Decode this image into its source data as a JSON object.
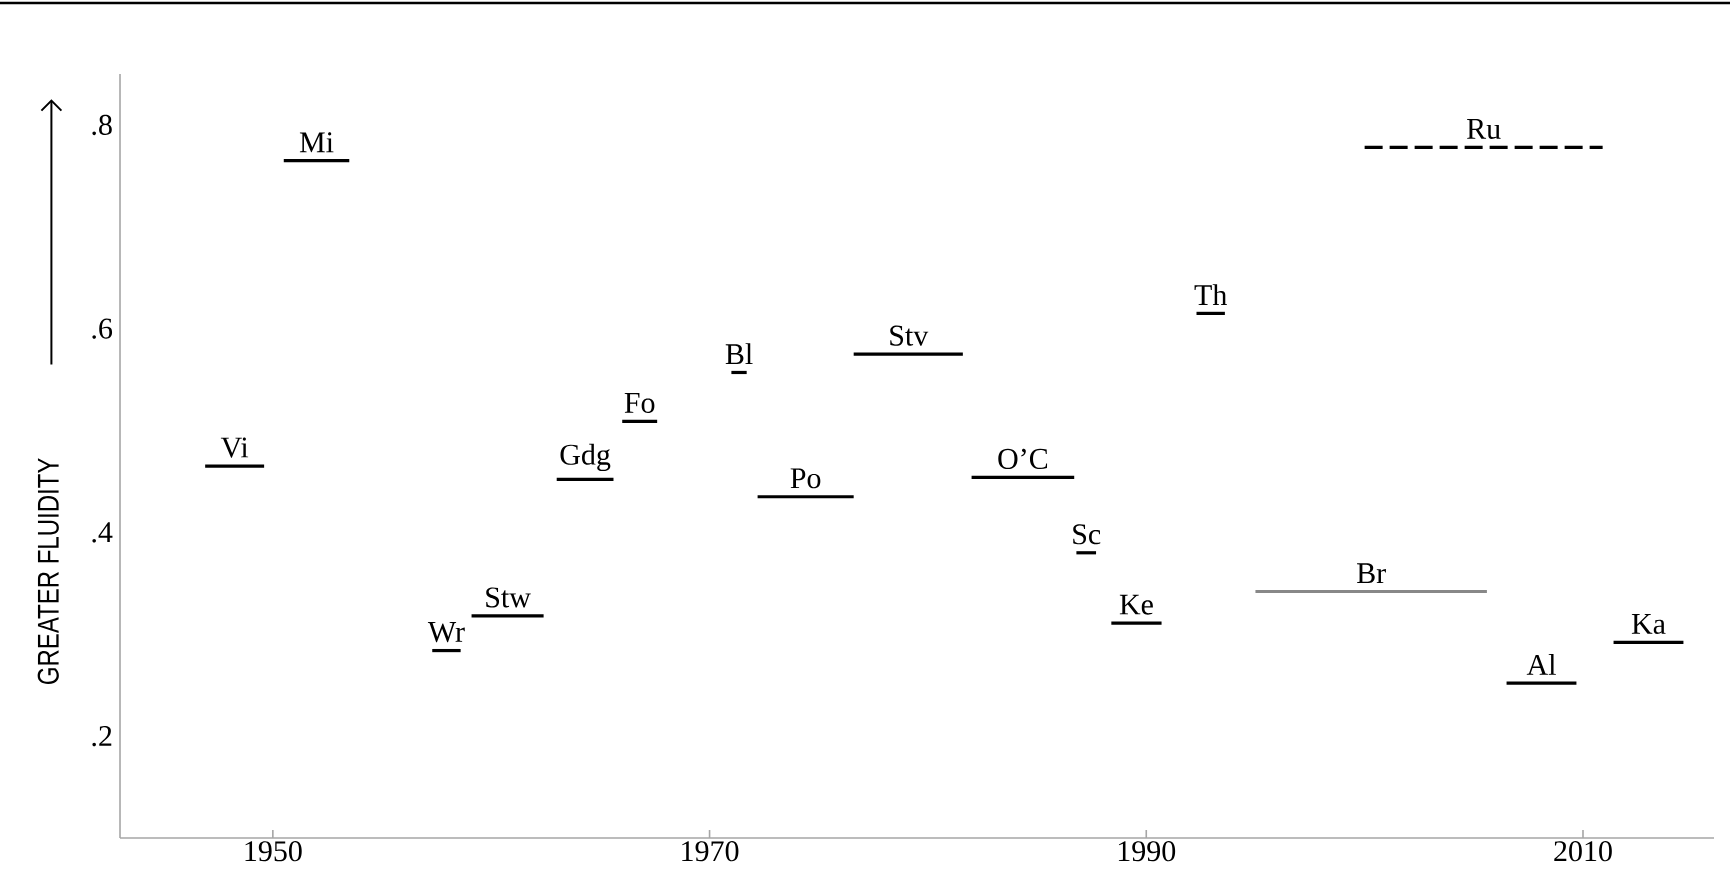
{
  "chart_data": {
    "type": "line",
    "ylabel": "GREATER FLUIDITY",
    "xlim": [
      1943,
      2016
    ],
    "ylim": [
      0.1,
      0.85
    ],
    "xticks": [
      1950,
      1970,
      1990,
      2010
    ],
    "yticks": [
      {
        "value": 0.2,
        "label": ".2"
      },
      {
        "value": 0.4,
        "label": ".4"
      },
      {
        "value": 0.6,
        "label": ".6"
      },
      {
        "value": 0.8,
        "label": ".8"
      }
    ],
    "line_style": "solid",
    "series": [
      {
        "name": "Vi",
        "color": "#000000",
        "x": [
          1946.9,
          1949.6
        ],
        "values": [
          0.465,
          0.465
        ]
      },
      {
        "name": "Mi",
        "color": "#000000",
        "x": [
          1950.5,
          1953.5
        ],
        "values": [
          0.765,
          0.765
        ]
      },
      {
        "name": "Wr",
        "color": "#000000",
        "x": [
          1957.3,
          1958.6
        ],
        "values": [
          0.284,
          0.284
        ]
      },
      {
        "name": "Stw",
        "color": "#000000",
        "x": [
          1959.1,
          1962.4
        ],
        "values": [
          0.318,
          0.318
        ]
      },
      {
        "name": "Gdg",
        "color": "#000000",
        "x": [
          1963.0,
          1965.6
        ],
        "values": [
          0.452,
          0.452
        ]
      },
      {
        "name": "Fo",
        "color": "#000000",
        "x": [
          1966.0,
          1967.6
        ],
        "values": [
          0.509,
          0.509
        ]
      },
      {
        "name": "Bl",
        "color": "#000000",
        "x": [
          1971.0,
          1971.7
        ],
        "values": [
          0.557,
          0.557
        ]
      },
      {
        "name": "Po",
        "color": "#000000",
        "x": [
          1972.2,
          1976.6
        ],
        "values": [
          0.435,
          0.435
        ]
      },
      {
        "name": "Stv",
        "color": "#000000",
        "x": [
          1976.6,
          1981.6
        ],
        "values": [
          0.575,
          0.575
        ]
      },
      {
        "name": "O’C",
        "color": "#000000",
        "x": [
          1982.0,
          1986.7
        ],
        "values": [
          0.454,
          0.454
        ]
      },
      {
        "name": "Sc",
        "color": "#000000",
        "x": [
          1986.8,
          1987.7
        ],
        "values": [
          0.38,
          0.38
        ]
      },
      {
        "name": "Ke",
        "color": "#000000",
        "x": [
          1988.4,
          1990.7
        ],
        "values": [
          0.311,
          0.311
        ]
      },
      {
        "name": "Th",
        "color": "#000000",
        "x": [
          1992.3,
          1993.6
        ],
        "values": [
          0.615,
          0.615
        ]
      },
      {
        "name": "Br",
        "color": "#888888",
        "x": [
          1995.0,
          2005.6
        ],
        "values": [
          0.342,
          0.342
        ]
      },
      {
        "name": "Ru",
        "color": "#000000",
        "x": [
          2000.0,
          2010.9
        ],
        "values": [
          0.778,
          0.778
        ],
        "line_style": "dashed"
      },
      {
        "name": "Al",
        "color": "#000000",
        "x": [
          2006.5,
          2009.7
        ],
        "values": [
          0.252,
          0.252
        ]
      },
      {
        "name": "Ka",
        "color": "#000000",
        "x": [
          2011.4,
          2014.6
        ],
        "values": [
          0.292,
          0.292
        ]
      }
    ]
  }
}
